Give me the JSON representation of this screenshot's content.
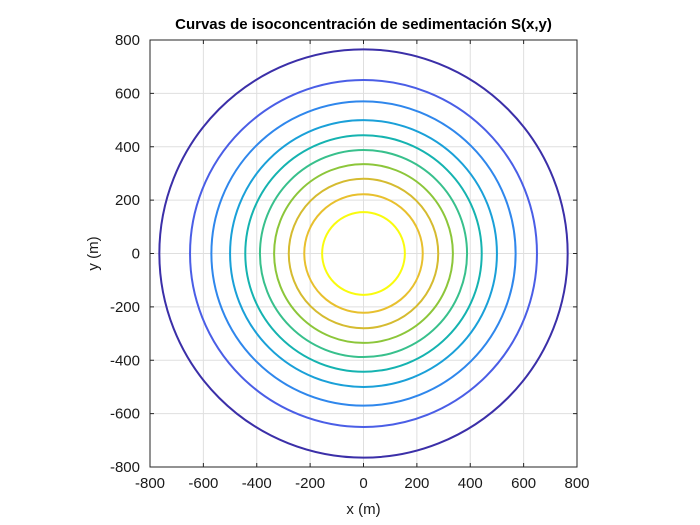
{
  "chart_data": {
    "type": "contour",
    "title": "Curvas de isoconcentración de sedimentación S(x,y)",
    "xlabel": "x (m)",
    "ylabel": "y (m)",
    "xlim": [
      -800,
      800
    ],
    "ylim": [
      -800,
      800
    ],
    "xticks": [
      -800,
      -600,
      -400,
      -200,
      0,
      200,
      400,
      600,
      800
    ],
    "yticks": [
      -800,
      -600,
      -400,
      -200,
      0,
      200,
      400,
      600,
      800
    ],
    "xtick_labels": [
      "-800",
      "-600",
      "-400",
      "-200",
      "0",
      "200",
      "400",
      "600",
      "800"
    ],
    "ytick_labels": [
      "-800",
      "-600",
      "-400",
      "-200",
      "0",
      "200",
      "400",
      "600",
      "800"
    ],
    "grid": true,
    "center": [
      0,
      0
    ],
    "contours": [
      {
        "radius": 155,
        "color": "#f9fb0e"
      },
      {
        "radius": 222,
        "color": "#e8c02e"
      },
      {
        "radius": 280,
        "color": "#d5bb30"
      },
      {
        "radius": 335,
        "color": "#8cc63a"
      },
      {
        "radius": 388,
        "color": "#38c08c"
      },
      {
        "radius": 443,
        "color": "#15b3b0"
      },
      {
        "radius": 500,
        "color": "#1aa0d8"
      },
      {
        "radius": 570,
        "color": "#2f87ec"
      },
      {
        "radius": 650,
        "color": "#4a5ee6"
      },
      {
        "radius": 765,
        "color": "#3b2fa8"
      }
    ]
  }
}
